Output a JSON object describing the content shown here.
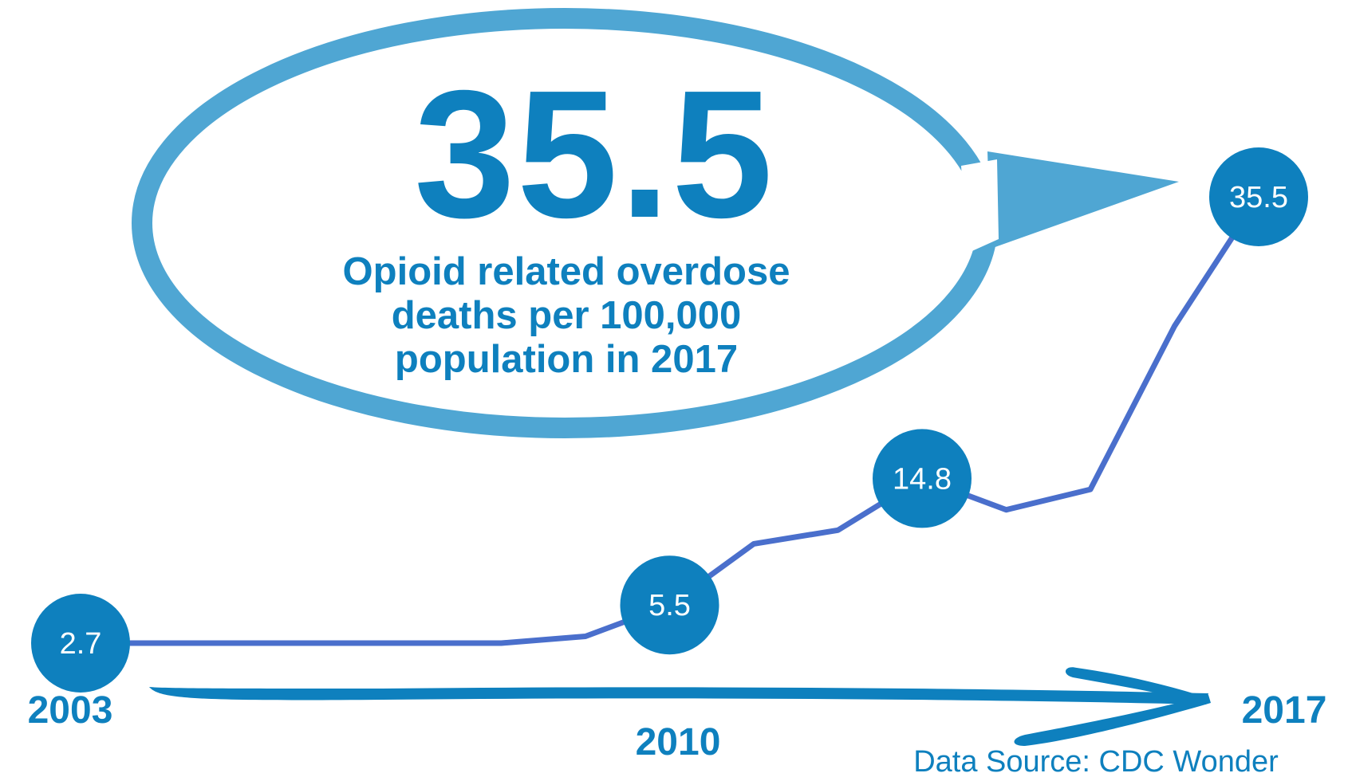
{
  "colors": {
    "primary": "#0E80BE",
    "bubble_outline": "#4FA6D3",
    "trend_line": "#4A6FCC",
    "point_text": "#ffffff"
  },
  "callout": {
    "value": "35.5",
    "line1": "Opioid related overdose",
    "line2": "deaths per 100,000",
    "line3": "population in 2017"
  },
  "source": "Data Source: CDC Wonder",
  "chart_data": {
    "type": "line",
    "title": "",
    "xlabel": "",
    "ylabel": "",
    "x_tick_labels": [
      "2003",
      "2010",
      "2017"
    ],
    "xlim": [
      2003,
      2017
    ],
    "ylim": [
      0,
      35.5
    ],
    "grid": false,
    "series": [
      {
        "x": [
          2003,
          2004,
          2005,
          2006,
          2007,
          2008,
          2009,
          2010,
          2011,
          2012,
          2013,
          2014,
          2015,
          2016,
          2017
        ],
        "values": [
          2.7,
          2.7,
          2.7,
          2.7,
          2.7,
          2.7,
          3.2,
          5.5,
          10.0,
          11.0,
          14.8,
          12.5,
          14.0,
          26.0,
          35.5
        ]
      }
    ],
    "labeled_points": [
      {
        "x": 2003,
        "y": 2.7,
        "label": "2.7"
      },
      {
        "x": 2010,
        "y": 5.5,
        "label": "5.5"
      },
      {
        "x": 2013,
        "y": 14.8,
        "label": "14.8"
      },
      {
        "x": 2017,
        "y": 35.5,
        "label": "35.5"
      }
    ]
  }
}
